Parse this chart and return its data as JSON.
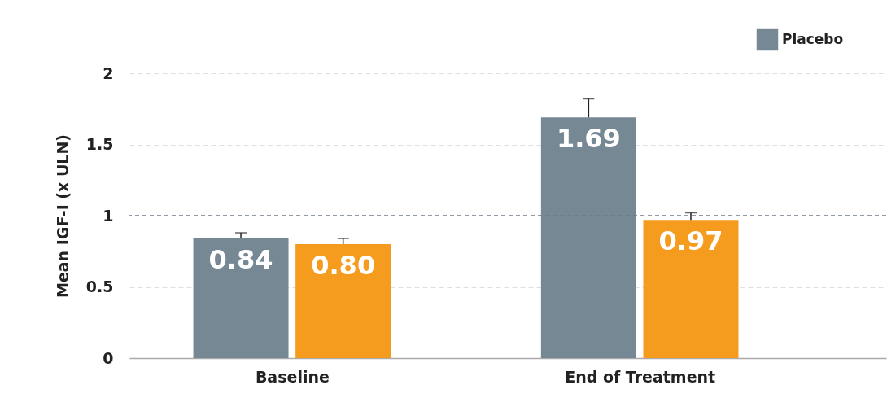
{
  "chart_data": {
    "type": "bar",
    "ylabel": "Mean IGF-I (x ULN)",
    "categories": [
      "Baseline",
      "End of Treatment"
    ],
    "series": [
      {
        "name": "Placebo",
        "color": "#778895",
        "values": [
          0.84,
          1.69
        ],
        "value_labels": [
          "0.84",
          "1.69"
        ],
        "errors": [
          [
            0.84,
            0.88
          ],
          [
            1.69,
            1.82
          ]
        ]
      },
      {
        "color": "#f59c1f",
        "values": [
          0.8,
          0.97
        ],
        "value_labels": [
          "0.80",
          "0.97"
        ],
        "errors": [
          [
            0.8,
            0.84
          ],
          [
            0.97,
            1.02
          ]
        ]
      }
    ],
    "ylim": [
      0,
      2
    ],
    "yticks": [
      0,
      0.5,
      1,
      1.5,
      2
    ],
    "grid": "y",
    "legend": "top right",
    "ref_lines": [
      {
        "axis": "y",
        "value": 1,
        "color": "#6b7a86",
        "line_style": "dashed"
      }
    ]
  }
}
